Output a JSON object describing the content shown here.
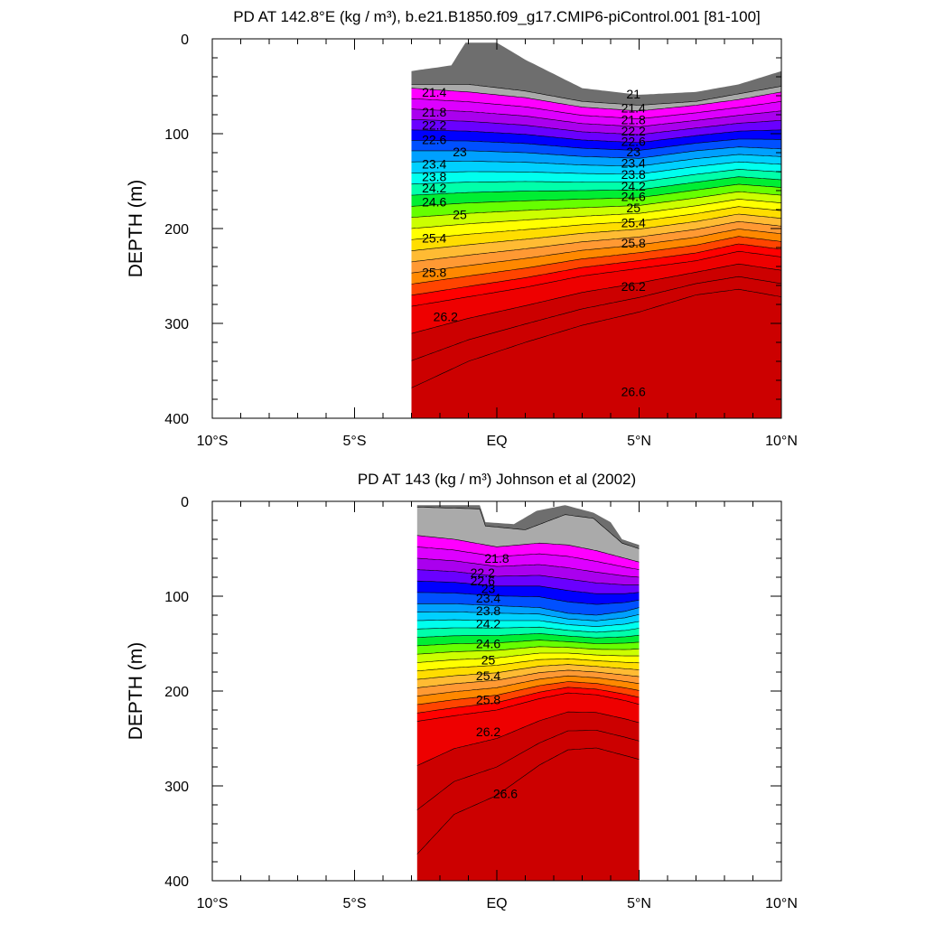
{
  "chart_data": [
    {
      "type": "contour",
      "title": "PD AT 142.8°E (kg / m³), b.e21.B1850.f09_g17.CMIP6-piControl.001 [81-100]",
      "ylabel": "DEPTH (m)",
      "xlim": [
        -10,
        10
      ],
      "ylim": [
        0,
        400
      ],
      "y_reversed": true,
      "x_ticks": [
        -10,
        -5,
        0,
        5,
        10
      ],
      "x_tick_labels": [
        "10°S",
        "5°S",
        "EQ",
        "5°N",
        "10°N"
      ],
      "y_ticks": [
        0,
        100,
        200,
        300,
        400
      ],
      "y_tick_labels": [
        "0",
        "100",
        "200",
        "300",
        "400"
      ],
      "data_x_range": [
        -3.0,
        10.0
      ],
      "contour_interval": 0.2,
      "contour_labels_left": [
        {
          "lat": -2.2,
          "depth": 56,
          "label": "21.4"
        },
        {
          "lat": -2.2,
          "depth": 77,
          "label": "21.8"
        },
        {
          "lat": -2.2,
          "depth": 91,
          "label": "22.2"
        },
        {
          "lat": -2.2,
          "depth": 106,
          "label": "22.6"
        },
        {
          "lat": -1.3,
          "depth": 119,
          "label": "23"
        },
        {
          "lat": -2.2,
          "depth": 132,
          "label": "23.4"
        },
        {
          "lat": -2.2,
          "depth": 145,
          "label": "23.8"
        },
        {
          "lat": -2.2,
          "depth": 157,
          "label": "24.2"
        },
        {
          "lat": -2.2,
          "depth": 172,
          "label": "24.6"
        },
        {
          "lat": -1.3,
          "depth": 185,
          "label": "25"
        },
        {
          "lat": -2.2,
          "depth": 210,
          "label": "25.4"
        },
        {
          "lat": -2.2,
          "depth": 246,
          "label": "25.8"
        },
        {
          "lat": -1.8,
          "depth": 293,
          "label": "26.2"
        }
      ],
      "contour_labels_right": [
        {
          "lat": 4.8,
          "depth": 58,
          "label": "21"
        },
        {
          "lat": 4.8,
          "depth": 73,
          "label": "21.4"
        },
        {
          "lat": 4.8,
          "depth": 85,
          "label": "21.8"
        },
        {
          "lat": 4.8,
          "depth": 97,
          "label": "22.2"
        },
        {
          "lat": 4.8,
          "depth": 108,
          "label": "22.6"
        },
        {
          "lat": 4.8,
          "depth": 119,
          "label": "23"
        },
        {
          "lat": 4.8,
          "depth": 131,
          "label": "23.4"
        },
        {
          "lat": 4.8,
          "depth": 143,
          "label": "23.8"
        },
        {
          "lat": 4.8,
          "depth": 155,
          "label": "24.2"
        },
        {
          "lat": 4.8,
          "depth": 166,
          "label": "24.6"
        },
        {
          "lat": 4.8,
          "depth": 178,
          "label": "25"
        },
        {
          "lat": 4.8,
          "depth": 194,
          "label": "25.4"
        },
        {
          "lat": 4.8,
          "depth": 215,
          "label": "25.8"
        },
        {
          "lat": 4.8,
          "depth": 261,
          "label": "26.2"
        },
        {
          "lat": 4.8,
          "depth": 372,
          "label": "26.6"
        }
      ]
    },
    {
      "type": "contour",
      "title": "PD AT 143 (kg / m³) Johnson et al (2002)",
      "ylabel": "DEPTH (m)",
      "xlim": [
        -10,
        10
      ],
      "ylim": [
        0,
        400
      ],
      "y_reversed": true,
      "x_ticks": [
        -10,
        -5,
        0,
        5,
        10
      ],
      "x_tick_labels": [
        "10°S",
        "5°S",
        "EQ",
        "5°N",
        "10°N"
      ],
      "y_ticks": [
        0,
        100,
        200,
        300,
        400
      ],
      "y_tick_labels": [
        "0",
        "100",
        "200",
        "300",
        "400"
      ],
      "data_x_range": [
        -2.8,
        5.0
      ],
      "contour_interval": 0.2,
      "contour_labels": [
        {
          "lat": 0.0,
          "depth": 60,
          "label": "21.8"
        },
        {
          "lat": -0.5,
          "depth": 75,
          "label": "22.2"
        },
        {
          "lat": -0.5,
          "depth": 84,
          "label": "22.6"
        },
        {
          "lat": -0.3,
          "depth": 92,
          "label": "23"
        },
        {
          "lat": -0.3,
          "depth": 102,
          "label": "23.4"
        },
        {
          "lat": -0.3,
          "depth": 115,
          "label": "23.8"
        },
        {
          "lat": -0.3,
          "depth": 129,
          "label": "24.2"
        },
        {
          "lat": -0.3,
          "depth": 150,
          "label": "24.6"
        },
        {
          "lat": -0.3,
          "depth": 167,
          "label": "25"
        },
        {
          "lat": -0.3,
          "depth": 184,
          "label": "25.4"
        },
        {
          "lat": -0.3,
          "depth": 209,
          "label": "25.8"
        },
        {
          "lat": -0.3,
          "depth": 243,
          "label": "26.2"
        },
        {
          "lat": 0.3,
          "depth": 308,
          "label": "26.6"
        }
      ]
    }
  ],
  "colors": {
    "palette": [
      "#6e6e6e",
      "#aaaaaa",
      "#ff00ff",
      "#dd00ff",
      "#aa00ee",
      "#6a00ff",
      "#0000ff",
      "#0050ff",
      "#00a0ff",
      "#00d0ff",
      "#00ffee",
      "#00ffaa",
      "#00ee33",
      "#66ff00",
      "#ccff00",
      "#ffff00",
      "#ffdd00",
      "#ffbb33",
      "#ff9933",
      "#ff8800",
      "#ff4400",
      "#ff0000",
      "#ee0000",
      "#cc0000"
    ],
    "line": "#000000"
  }
}
